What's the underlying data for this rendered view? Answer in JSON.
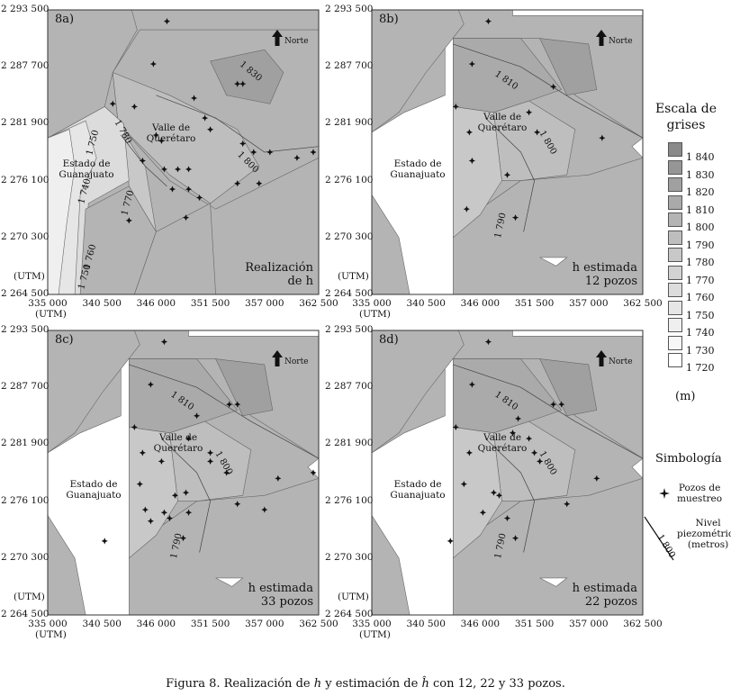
{
  "axes": {
    "y_ticks": [
      "2 293 500",
      "2 287 700",
      "2 281 900",
      "2 276 100",
      "2 270 300",
      "2 264 500"
    ],
    "x_ticks": [
      "335 000",
      "340 500",
      "346 000",
      "351 500",
      "357 000",
      "362 500"
    ],
    "utm_y": "(UTM)",
    "utm_x": "(UTM)"
  },
  "panels": [
    {
      "id": "8a)",
      "corner_line1": "Realización",
      "corner_line2": "de h",
      "corner_italic": "h"
    },
    {
      "id": "8b)",
      "corner_line1": "h estimada",
      "corner_line2": "12 pozos"
    },
    {
      "id": "8c)",
      "corner_line1": "h estimada",
      "corner_line2": "33 pozos"
    },
    {
      "id": "8d)",
      "corner_line1": "h estimada",
      "corner_line2": "22 pozos"
    }
  ],
  "map_labels": {
    "norte": "Norte",
    "valle_line1": "Valle de",
    "valle_line2": "Querétaro",
    "estado_line1": "Estado de",
    "estado_line2": "Guanajuato"
  },
  "contours_8a": [
    "1 830",
    "1 780",
    "1 800",
    "1 750",
    "1 740",
    "1 770",
    "1 760",
    "1 750"
  ],
  "contours_estimated": [
    "1 810",
    "1 800",
    "1 790"
  ],
  "legend": {
    "title_line1": "Escala de",
    "title_line2": "grises",
    "unit": "(m)",
    "values": [
      "1 840",
      "1 830",
      "1 820",
      "1 810",
      "1 800",
      "1 790",
      "1 780",
      "1 770",
      "1 760",
      "1 750",
      "1 740",
      "1 730",
      "1 720"
    ],
    "colors": [
      "#8a8a8a",
      "#969696",
      "#a0a0a0",
      "#aaaaaa",
      "#b4b4b4",
      "#bebebe",
      "#c8c8c8",
      "#d2d2d2",
      "#dcdcdc",
      "#e6e6e6",
      "#efefef",
      "#f7f7f7",
      "#ffffff"
    ]
  },
  "symbology": {
    "title": "Simbología",
    "wells_line1": "Pozos de",
    "wells_line2": "muestreo",
    "level_line1": "Nivel",
    "level_line2": "piezométrico",
    "level_line3": "(metros)",
    "level_sample": "1 800"
  },
  "caption": {
    "prefix": "Figura 8. Realización de ",
    "h": "h",
    "middle": " y estimación de ",
    "hhat": "ĥ",
    "suffix": " con 12, 22 y 33 pozos."
  }
}
